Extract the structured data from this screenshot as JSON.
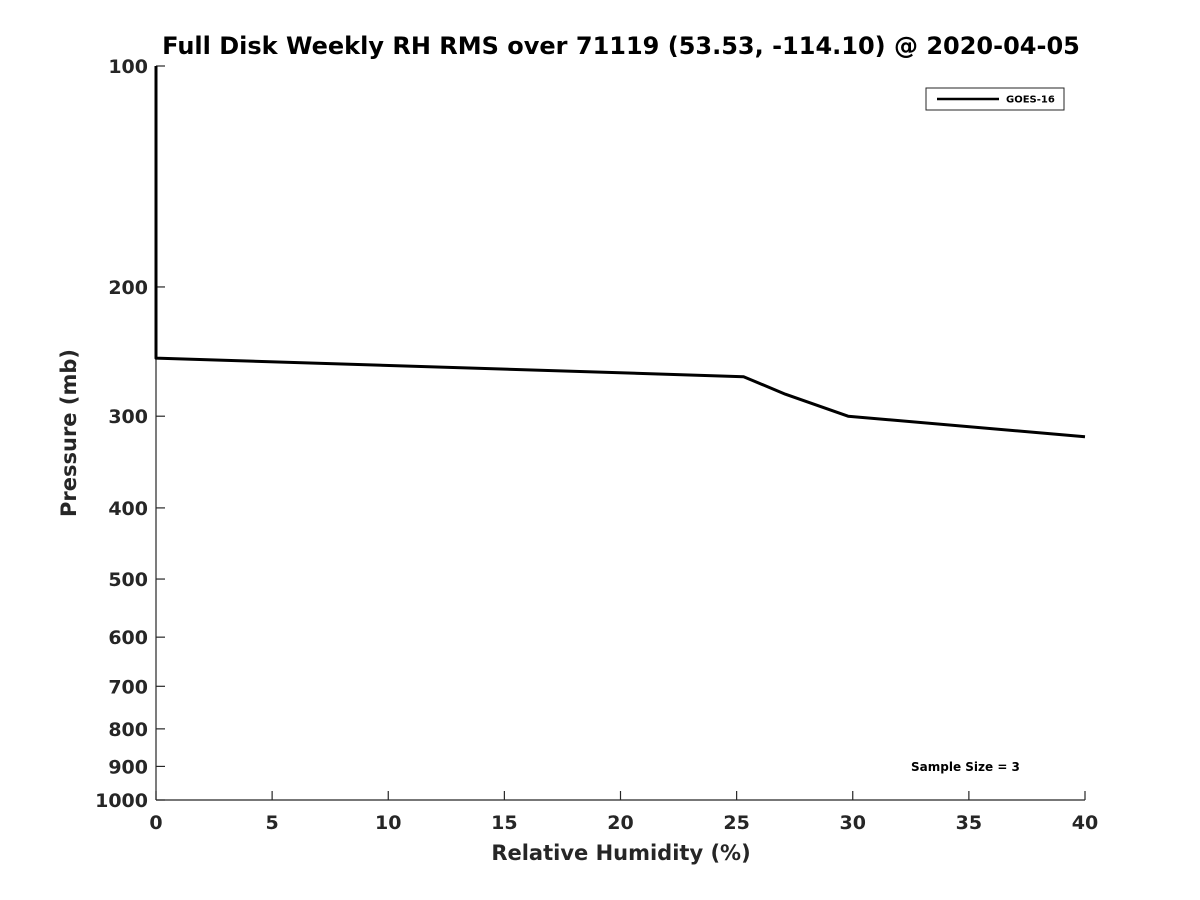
{
  "chart_data": {
    "type": "line",
    "title": "Full Disk Weekly RH RMS over 71119 (53.53, -114.10) @ 2020-04-05",
    "xlabel": "Relative Humidity (%)",
    "ylabel": "Pressure (mb)",
    "xlim": [
      0,
      40
    ],
    "ylim": [
      100,
      1000
    ],
    "yscale": "log",
    "y_reversed": true,
    "grid": false,
    "x_ticks": [
      0,
      5,
      10,
      15,
      20,
      25,
      30,
      35,
      40
    ],
    "x_tick_labels": [
      "0",
      "5",
      "10",
      "15",
      "20",
      "25",
      "30",
      "35",
      "40"
    ],
    "y_ticks": [
      100,
      200,
      300,
      400,
      500,
      600,
      700,
      800,
      900,
      1000
    ],
    "y_tick_labels": [
      "100",
      "200",
      "300",
      "400",
      "500",
      "600",
      "700",
      "800",
      "900",
      "1000"
    ],
    "legend_position": "top-right",
    "series": [
      {
        "name": "GOES-16",
        "color": "#000000",
        "x": [
          0,
          0,
          0,
          25.3,
          27.1,
          29.8,
          40
        ],
        "y": [
          100,
          200,
          250,
          265,
          280,
          300,
          320
        ]
      }
    ],
    "annotation": "Sample Size = 3"
  }
}
